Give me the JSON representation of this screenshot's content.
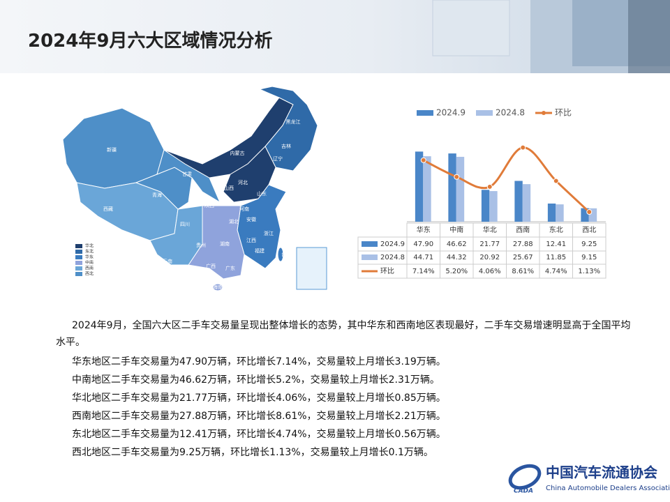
{
  "header": {
    "title": "2024年9月六大区域情况分析"
  },
  "chart_data": {
    "type": "bar",
    "categories": [
      "华东",
      "中南",
      "华北",
      "西南",
      "东北",
      "西北"
    ],
    "series": [
      {
        "name": "2024.9",
        "color": "#4a86c8",
        "values": [
          47.9,
          46.62,
          21.77,
          27.88,
          12.41,
          9.25
        ],
        "value_labels": [
          "47.90",
          "46.62",
          "21.77",
          "27.88",
          "12.41",
          "9.25"
        ]
      },
      {
        "name": "2024.8",
        "color": "#a9c0e6",
        "values": [
          44.71,
          44.32,
          20.92,
          25.67,
          11.85,
          9.15
        ],
        "value_labels": [
          "44.71",
          "44.32",
          "20.92",
          "25.67",
          "11.85",
          "9.15"
        ]
      },
      {
        "name": "环比",
        "type": "line",
        "axis": "y2",
        "color": "#e07b39",
        "values": [
          7.14,
          5.2,
          4.06,
          8.61,
          4.74,
          1.13
        ],
        "value_labels": [
          "7.14%",
          "5.20%",
          "4.06%",
          "8.61%",
          "4.74%",
          "1.13%"
        ]
      }
    ],
    "ylim": [
      0,
      50
    ],
    "y2lim": [
      0,
      8.5
    ]
  },
  "map": {
    "legend": [
      {
        "label": "华北",
        "color": "#1f3f6e"
      },
      {
        "label": "东北",
        "color": "#2f6aa8"
      },
      {
        "label": "华东",
        "color": "#3a7bbf"
      },
      {
        "label": "中南",
        "color": "#8fa3dc"
      },
      {
        "label": "西南",
        "color": "#6aa6d8"
      },
      {
        "label": "西北",
        "color": "#4e8fc8"
      }
    ],
    "provinces": [
      "新疆",
      "西藏",
      "青海",
      "甘肃",
      "内蒙古",
      "黑龙江",
      "吉林",
      "辽宁",
      "河北",
      "山西",
      "山东",
      "陕西",
      "四川",
      "云南",
      "贵州",
      "广西",
      "广东",
      "湖南",
      "湖北",
      "河南",
      "江西",
      "福建",
      "浙江",
      "安徽",
      "台湾",
      "海南"
    ]
  },
  "text": {
    "paragraphs": [
      "2024年9月，全国六大区二手车交易量呈现出整体增长的态势，其中华东和西南地区表现最好，二手车交易增速明显高于全国平均水平。",
      "华东地区二手车交易量为47.90万辆，环比增长7.14%，交易量较上月增长3.19万辆。",
      "中南地区二手车交易量为46.62万辆，环比增长5.2%，交易量较上月增长2.31万辆。",
      "华北地区二手车交易量为21.77万辆，环比增长4.06%，交易量较上月增长0.85万辆。",
      "西南地区二手车交易量为27.88万辆，环比增长8.61%，交易量较上月增长2.21万辆。",
      "东北地区二手车交易量为12.41万辆，环比增长4.74%，交易量较上月增长0.56万辆。",
      "西北地区二手车交易量为9.25万辆，环比增长1.13%，交易量较上月增长0.1万辆。"
    ]
  },
  "logo": {
    "name": "中国汽车流通协会",
    "english": "China Automobile Dealers Association",
    "abbr": "CADA"
  }
}
